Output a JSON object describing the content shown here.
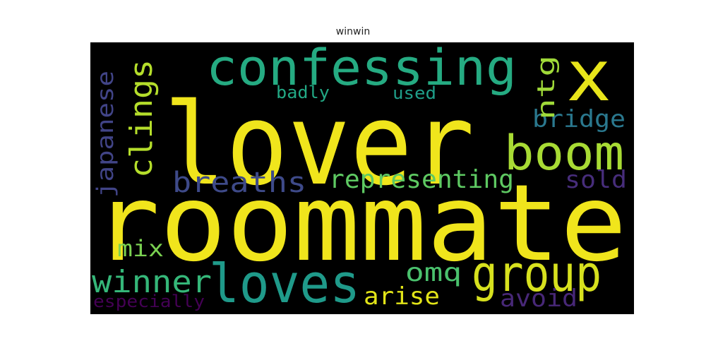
{
  "chart_data": {
    "type": "wordcloud",
    "title": "winwin",
    "background": "#000000",
    "words": [
      {
        "text": "roommate",
        "color": "#f0e51c"
      },
      {
        "text": "lover",
        "color": "#f0e51c"
      },
      {
        "text": "confessing",
        "color": "#25ab82"
      },
      {
        "text": "x",
        "color": "#e8e51a"
      },
      {
        "text": "boom",
        "color": "#a8db34"
      },
      {
        "text": "group",
        "color": "#d7e11e"
      },
      {
        "text": "loves",
        "color": "#1f9a8a"
      },
      {
        "text": "clings",
        "color": "#b5de2b"
      },
      {
        "text": "japanese",
        "color": "#414487"
      },
      {
        "text": "breaths",
        "color": "#3e4a89"
      },
      {
        "text": "representing",
        "color": "#5ec962"
      },
      {
        "text": "winner",
        "color": "#35b779"
      },
      {
        "text": "bridge",
        "color": "#2a788e"
      },
      {
        "text": "ntg",
        "color": "#a0da39"
      },
      {
        "text": "omq",
        "color": "#4ac16d"
      },
      {
        "text": "sold",
        "color": "#472d7b"
      },
      {
        "text": "mix",
        "color": "#7ad151"
      },
      {
        "text": "avoid",
        "color": "#482878"
      },
      {
        "text": "arise",
        "color": "#e2e418"
      },
      {
        "text": "badly",
        "color": "#22a884"
      },
      {
        "text": "used",
        "color": "#1f9e89"
      },
      {
        "text": "especially",
        "color": "#440154"
      }
    ]
  }
}
